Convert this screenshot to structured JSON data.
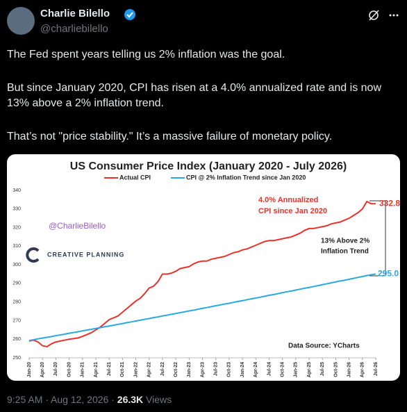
{
  "tweet": {
    "name": "Charlie Bilello",
    "handle": "@charliebilello",
    "paragraphs": [
      "The Fed spent years telling us 2% inflation was the goal.",
      "But since January 2020, CPI has risen at a 4.0% annualized rate and is now 13% above a 2% inflation trend.",
      "That’s not \"price stability.\" It’s a massive failure of monetary policy."
    ],
    "timestamp": "9:25 AM · Aug 12, 2026 ·",
    "views": "26.3K",
    "views_label": "Views"
  },
  "chart_data": {
    "type": "line",
    "title": "US Consumer Price Index (January 2020 -  July 2026)",
    "categories": [
      "Jan-20",
      null,
      null,
      "Apr-20",
      null,
      null,
      "Jul-20",
      null,
      null,
      "Oct-20",
      null,
      null,
      "Jan-21",
      null,
      null,
      "Apr-21",
      null,
      null,
      "Jul-21",
      null,
      null,
      "Oct-21",
      null,
      null,
      "Jan-22",
      null,
      null,
      "Apr-22",
      null,
      null,
      "Jul-22",
      null,
      null,
      "Oct-22",
      null,
      null,
      "Jan-23",
      null,
      null,
      "Apr-23",
      null,
      null,
      "Jul-23",
      null,
      null,
      "Oct-23",
      null,
      null,
      "Jan-24",
      null,
      null,
      "Apr-24",
      null,
      null,
      "Jul-24",
      null,
      null,
      "Oct-24",
      null,
      null,
      "Jan-25",
      null,
      null,
      "Apr-25",
      null,
      null,
      "Jul-25",
      null,
      null,
      "Oct-25",
      null,
      null,
      "Jan-26",
      null,
      null,
      "Apr-26",
      null,
      null,
      "Jul-26"
    ],
    "series": [
      {
        "name": "Actual CPI",
        "color": "#e8322a",
        "values": [
          259,
          259.5,
          258.5,
          256.5,
          256,
          257.5,
          258.5,
          259,
          259.5,
          260,
          260.3,
          260.7,
          261.5,
          262.5,
          263.5,
          265,
          266.5,
          268.5,
          270.5,
          271.5,
          272.5,
          274.5,
          276.5,
          278.5,
          280.5,
          282,
          284.5,
          287.5,
          288.5,
          291,
          295,
          295,
          295.5,
          296.5,
          298,
          298.5,
          299,
          300.5,
          301.5,
          302,
          302,
          303,
          303.5,
          304,
          304.5,
          305.5,
          306.5,
          307,
          308,
          308.5,
          309.5,
          310.5,
          311.5,
          312.5,
          313,
          313,
          313.5,
          314,
          314.5,
          315,
          316,
          317,
          318.5,
          319.5,
          319.5,
          320,
          320.5,
          321,
          322,
          322.5,
          323,
          324,
          325,
          326.5,
          328,
          330,
          334,
          332.8,
          332.8
        ]
      },
      {
        "name": "CPI @ 2% Inflation Trend since Jan 2020",
        "color": "#27a9e1",
        "values": [
          259.3,
          259.7,
          260.2,
          260.6,
          261,
          261.4,
          261.9,
          262.3,
          262.7,
          263.2,
          263.6,
          264,
          264.5,
          264.9,
          265.3,
          265.8,
          266.2,
          266.7,
          267.1,
          267.5,
          268,
          268.4,
          268.9,
          269.3,
          269.8,
          270.2,
          270.7,
          271.1,
          271.6,
          272,
          272.5,
          272.9,
          273.4,
          273.8,
          274.3,
          274.7,
          275.2,
          275.6,
          276.1,
          276.6,
          277,
          277.5,
          278,
          278.4,
          278.9,
          279.3,
          279.8,
          280.3,
          280.7,
          281.2,
          281.7,
          282.1,
          282.6,
          283.1,
          283.6,
          284,
          284.5,
          285,
          285.5,
          285.9,
          286.4,
          286.9,
          287.4,
          287.8,
          288.3,
          288.8,
          289.3,
          289.8,
          290.3,
          290.8,
          291.3,
          291.7,
          292.2,
          292.7,
          293.2,
          293.7,
          294.2,
          294.7,
          295
        ],
        "value_labels": [
          null,
          null,
          null,
          null,
          null,
          null,
          null,
          null,
          null,
          null,
          null,
          null,
          null,
          null,
          null,
          null,
          null,
          null,
          null,
          null,
          null,
          null,
          null,
          null,
          null,
          null,
          null,
          null,
          null,
          null,
          null,
          null,
          null,
          null,
          null,
          null,
          null,
          null,
          null,
          null,
          null,
          null,
          null,
          null,
          null,
          null,
          null,
          null,
          null,
          null,
          null,
          null,
          null,
          null,
          null,
          null,
          null,
          null,
          null,
          null,
          null,
          null,
          null,
          null,
          null,
          null,
          null,
          null,
          null,
          null,
          null,
          null,
          null,
          null,
          null,
          null,
          null,
          null,
          "295.0"
        ]
      }
    ],
    "ylim": [
      250,
      340
    ],
    "yticks": [
      250,
      260,
      270,
      280,
      290,
      300,
      310,
      320,
      330,
      340
    ],
    "grid": false,
    "annotation_rate": [
      "4.0% Annualized",
      "CPI since Jan 2020"
    ],
    "annotation_gap": [
      "13% Above 2%",
      "Inflation Trend"
    ],
    "watermark": "@CharlieBilello",
    "logo": "CREATIVE PLANNING",
    "source": "Data Source: YCharts"
  }
}
